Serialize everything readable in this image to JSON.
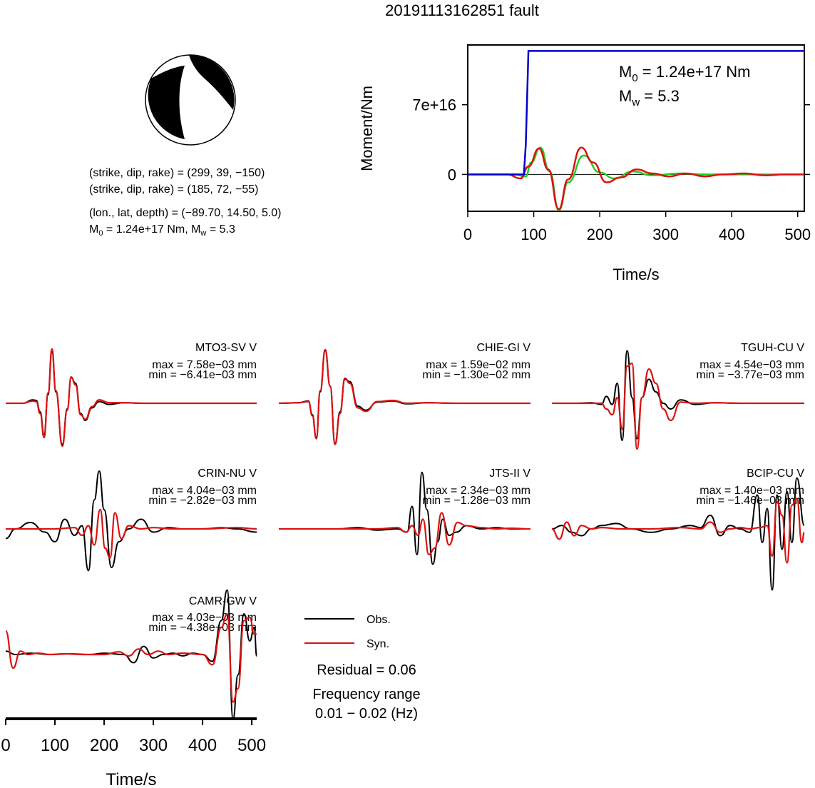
{
  "title": "20191113162851 fault",
  "focal": {
    "plane1": "(strike, dip, rake) = (299, 39, −150)",
    "plane2": "(strike, dip, rake) = (185, 72, −55)",
    "location": "(lon., lat, depth) = (−89.70, 14.50, 5.0)",
    "moment_prefix": "M",
    "moment_sub": "0",
    "moment_mid": " = 1.24e+17 Nm, M",
    "moment_sub2": "w",
    "moment_tail": " = 5.3"
  },
  "moment_panel": {
    "m0_prefix": "M",
    "m0_sub": "0",
    "m0_value": " = 1.24e+17 Nm",
    "mw_prefix": "M",
    "mw_sub": "w",
    "mw_value": " = 5.3"
  },
  "legend": {
    "obs": "Obs.",
    "syn": "Syn.",
    "residual": "Residual = 0.06",
    "freq_title": "Frequency range",
    "freq_value": "0.01 − 0.02 (Hz)"
  },
  "colors": {
    "obs": "#000000",
    "syn": "#dd1111",
    "cumulative_moment": "#0000cc",
    "moment_rate_a": "#dd1111",
    "moment_rate_b": "#22cc22"
  },
  "chart_data": [
    {
      "type": "line",
      "title": "",
      "xlabel": "Time/s",
      "ylabel": "Moment/Nm",
      "xlim": [
        0,
        510
      ],
      "ylim": [
        -37000000000000000,
        130000000000000000
      ],
      "xticks": [
        "0",
        "100",
        "200",
        "300",
        "400",
        "500"
      ],
      "yticks": [
        "0",
        "7e+16"
      ],
      "series": [
        {
          "color": "#0000cc",
          "x": [
            0,
            85,
            88,
            92,
            510
          ],
          "y": [
            0,
            0,
            30000000000000000,
            124000000000000000,
            124000000000000000
          ]
        },
        {
          "color": "#dd1111",
          "x": [
            0,
            60,
            80,
            92,
            108,
            122,
            138,
            152,
            172,
            190,
            210,
            232,
            256,
            280,
            305,
            330,
            360,
            385,
            420,
            450,
            480,
            510
          ],
          "y": [
            0,
            0,
            -4000000000000000,
            8000000000000000,
            26000000000000000,
            5000000000000000,
            -35000000000000000,
            -5000000000000000,
            27000000000000000,
            12000000000000000,
            -8000000000000000,
            -3000000000000000,
            5000000000000000,
            1000000000000000,
            -2000000000000000,
            1000000000000000,
            -2000000000000000,
            0,
            1000000000000000,
            -1000000000000000,
            0,
            0
          ]
        },
        {
          "color": "#22cc22",
          "x": [
            0,
            70,
            88,
            96,
            110,
            124,
            138,
            152,
            176,
            200,
            222,
            250,
            280,
            320,
            360,
            400,
            510
          ],
          "y": [
            0,
            0,
            -2000000000000000,
            12000000000000000,
            27000000000000000,
            3000000000000000,
            -36000000000000000,
            -8000000000000000,
            19000000000000000,
            2000000000000000,
            -4000000000000000,
            3000000000000000,
            -1000000000000000,
            1000000000000000,
            0,
            0,
            0
          ]
        }
      ]
    },
    {
      "type": "line",
      "title": "MTO3-SV V",
      "max_text": "max = 7.58e−03 mm",
      "min_text": "min = −6.41e−03 mm",
      "xlim": [
        0,
        510
      ],
      "ylim": [
        -1,
        1
      ],
      "series": [
        {
          "name": "Obs.",
          "x": [
            0,
            35,
            55,
            62,
            70,
            78,
            86,
            94,
            102,
            115,
            125,
            133,
            142,
            152,
            162,
            175,
            190,
            210,
            240,
            280,
            330,
            400,
            510
          ],
          "y": [
            0,
            0,
            0.06,
            0.05,
            -0.15,
            -0.55,
            0.15,
            0.9,
            0.2,
            -0.72,
            -0.1,
            0.45,
            0.35,
            -0.18,
            -0.3,
            -0.08,
            0.03,
            -0.02,
            0.01,
            0,
            0,
            0,
            0
          ]
        },
        {
          "name": "Syn.",
          "x": [
            0,
            35,
            55,
            62,
            70,
            78,
            86,
            94,
            102,
            115,
            125,
            133,
            142,
            152,
            162,
            175,
            190,
            210,
            240,
            280,
            330,
            400,
            510
          ],
          "y": [
            0,
            0,
            0.04,
            0.03,
            -0.18,
            -0.6,
            0.18,
            0.95,
            0.22,
            -0.75,
            -0.12,
            0.46,
            0.32,
            -0.2,
            -0.28,
            -0.06,
            0.06,
            0.01,
            0.01,
            0,
            0,
            0,
            0
          ]
        }
      ]
    },
    {
      "type": "line",
      "title": "CHIE-GI V",
      "max_text": "max = 1.59e−02 mm",
      "min_text": "min = −1.30e−02 mm",
      "xlim": [
        0,
        510
      ],
      "ylim": [
        -1,
        1
      ],
      "series": [
        {
          "name": "Obs.",
          "x": [
            0,
            40,
            60,
            68,
            76,
            84,
            94,
            104,
            114,
            124,
            134,
            144,
            160,
            176,
            200,
            230,
            260,
            300,
            360,
            430,
            510
          ],
          "y": [
            0,
            0.01,
            0.04,
            -0.2,
            -0.6,
            0.2,
            0.92,
            0.3,
            -0.7,
            -0.15,
            0.42,
            0.38,
            -0.05,
            -0.12,
            0.02,
            0.04,
            -0.01,
            0.01,
            0,
            0,
            0
          ]
        },
        {
          "name": "Syn.",
          "x": [
            0,
            40,
            60,
            68,
            76,
            84,
            94,
            104,
            114,
            124,
            134,
            144,
            160,
            176,
            200,
            230,
            260,
            300,
            360,
            430,
            510
          ],
          "y": [
            0,
            0.01,
            0.03,
            -0.22,
            -0.62,
            0.22,
            0.94,
            0.3,
            -0.72,
            -0.18,
            0.44,
            0.35,
            -0.08,
            -0.14,
            0.03,
            0.05,
            0,
            0.01,
            0,
            0,
            0
          ]
        }
      ]
    },
    {
      "type": "line",
      "title": "TGUH-CU V",
      "max_text": "max = 4.54e−03 mm",
      "min_text": "min = −3.77e−03 mm",
      "xlim": [
        0,
        510
      ],
      "ylim": [
        -1,
        1
      ],
      "series": [
        {
          "name": "Obs.",
          "x": [
            0,
            50,
            80,
            100,
            110,
            122,
            132,
            142,
            152,
            162,
            172,
            182,
            196,
            210,
            225,
            240,
            260,
            290,
            330,
            380,
            430,
            510
          ],
          "y": [
            0,
            0,
            0.01,
            -0.02,
            0.12,
            -0.02,
            0.35,
            -0.65,
            0.92,
            0.1,
            -0.62,
            0.1,
            0.42,
            0.2,
            0.0,
            -0.1,
            0.06,
            -0.02,
            0.01,
            0,
            0,
            0
          ]
        },
        {
          "name": "Syn.",
          "x": [
            0,
            50,
            80,
            100,
            110,
            122,
            132,
            142,
            152,
            162,
            172,
            182,
            196,
            210,
            225,
            240,
            260,
            290,
            330,
            380,
            430,
            510
          ],
          "y": [
            0,
            0,
            0,
            0,
            -0.1,
            -0.2,
            0.1,
            -0.45,
            0.65,
            0.7,
            -0.8,
            0.1,
            0.6,
            0.35,
            -0.1,
            -0.3,
            0.02,
            0.0,
            0.01,
            0,
            0,
            0
          ]
        }
      ]
    },
    {
      "type": "line",
      "title": "CRIN-NU V",
      "max_text": "max = 4.04e−03 mm",
      "min_text": "min = −2.82e−03 mm",
      "xlim": [
        0,
        510
      ],
      "ylim": [
        -1,
        1
      ],
      "series": [
        {
          "name": "Obs.",
          "x": [
            0,
            20,
            50,
            80,
            100,
            120,
            140,
            155,
            168,
            180,
            190,
            200,
            215,
            230,
            250,
            275,
            300,
            330,
            360,
            400,
            440,
            470,
            510
          ],
          "y": [
            -0.15,
            0.0,
            0.1,
            -0.05,
            -0.2,
            0.15,
            -0.1,
            0.05,
            -0.65,
            0.45,
            0.9,
            0.3,
            -0.6,
            -0.2,
            0.0,
            0.15,
            -0.05,
            0.02,
            0.0,
            0.0,
            0.02,
            0.0,
            -0.05
          ]
        },
        {
          "name": "Syn.",
          "x": [
            0,
            60,
            100,
            140,
            155,
            168,
            180,
            192,
            202,
            212,
            222,
            235,
            250,
            275,
            300,
            340,
            400,
            470,
            510
          ],
          "y": [
            0,
            0,
            0,
            0.02,
            -0.1,
            0.05,
            -0.25,
            0.3,
            -0.3,
            -0.45,
            0.25,
            -0.15,
            0.05,
            0.0,
            0.02,
            0,
            0,
            0.02,
            0
          ]
        }
      ]
    },
    {
      "type": "line",
      "title": "JTS-II V",
      "max_text": "max = 2.34e−03 mm",
      "min_text": "min = −1.28e−03 mm",
      "xlim": [
        0,
        510
      ],
      "ylim": [
        -1,
        1
      ],
      "series": [
        {
          "name": "Obs.",
          "x": [
            0,
            60,
            120,
            160,
            200,
            240,
            260,
            270,
            280,
            290,
            300,
            312,
            322,
            332,
            345,
            360,
            380,
            410,
            440,
            470,
            510
          ],
          "y": [
            0,
            0,
            0.0,
            0.02,
            -0.02,
            0.0,
            -0.05,
            0.35,
            -0.4,
            0.88,
            0.3,
            -0.55,
            -0.2,
            0.15,
            -0.1,
            -0.05,
            0.05,
            0.0,
            0.02,
            0.0,
            0.0
          ]
        },
        {
          "name": "Syn.",
          "x": [
            0,
            100,
            200,
            240,
            258,
            270,
            282,
            292,
            304,
            316,
            330,
            345,
            362,
            380,
            410,
            440,
            470,
            510
          ],
          "y": [
            0,
            0,
            0,
            0.02,
            -0.05,
            0.05,
            -0.1,
            0.15,
            -0.4,
            -0.3,
            0.25,
            -0.25,
            0.1,
            0.05,
            0.02,
            0.0,
            0.01,
            0
          ]
        }
      ]
    },
    {
      "type": "line",
      "title": "BCIP-CU V",
      "max_text": "max = 1.40e−03 mm",
      "min_text": "min = −1.46e−03 mm",
      "xlim": [
        0,
        510
      ],
      "ylim": [
        -1,
        1
      ],
      "series": [
        {
          "name": "Obs.",
          "x": [
            0,
            20,
            40,
            60,
            80,
            100,
            130,
            160,
            200,
            240,
            280,
            300,
            320,
            340,
            360,
            380,
            400,
            415,
            425,
            435,
            445,
            455,
            465,
            475,
            485,
            495,
            510
          ],
          "y": [
            0,
            0.05,
            -0.05,
            -0.1,
            0.0,
            0.05,
            0.08,
            0.0,
            -0.05,
            0.0,
            0.05,
            0.02,
            0.2,
            -0.1,
            0.05,
            0.0,
            -0.05,
            0.5,
            -0.2,
            0.3,
            -0.9,
            0.5,
            -0.3,
            0.55,
            -0.2,
            0.75,
            0.05
          ]
        },
        {
          "name": "Syn.",
          "x": [
            0,
            15,
            30,
            45,
            60,
            80,
            100,
            140,
            200,
            260,
            300,
            320,
            340,
            360,
            380,
            400,
            420,
            435,
            445,
            455,
            465,
            475,
            485,
            495,
            505,
            510
          ],
          "y": [
            0,
            -0.15,
            0.1,
            -0.1,
            0.05,
            0.0,
            0.02,
            0.0,
            0.0,
            0.02,
            0.0,
            0.1,
            -0.05,
            0.0,
            0.02,
            0.0,
            0.02,
            0.05,
            -0.4,
            0.4,
            0.2,
            -0.5,
            0.35,
            0.45,
            -0.2,
            -0.05
          ]
        }
      ]
    },
    {
      "type": "line",
      "title": "CAMR-GW V",
      "max_text": "max = 4.03e−03 mm",
      "min_text": "min = −4.38e−03 mm",
      "xlim": [
        0,
        510
      ],
      "ylim": [
        -1,
        1
      ],
      "series": [
        {
          "name": "Obs.",
          "x": [
            0,
            20,
            50,
            90,
            130,
            170,
            200,
            240,
            260,
            280,
            300,
            320,
            340,
            360,
            380,
            400,
            420,
            438,
            450,
            462,
            472,
            484,
            496,
            505,
            510
          ],
          "y": [
            0.05,
            0.0,
            0.02,
            0.0,
            0.01,
            0.0,
            0.02,
            0.0,
            -0.12,
            0.12,
            -0.05,
            0.0,
            0.02,
            -0.02,
            0.02,
            0.0,
            -0.1,
            0.5,
            0.95,
            -0.95,
            -0.3,
            0.6,
            0.2,
            0.4,
            -0.02
          ]
        },
        {
          "name": "Syn.",
          "x": [
            0,
            15,
            30,
            45,
            65,
            90,
            120,
            160,
            200,
            230,
            250,
            270,
            290,
            310,
            330,
            360,
            400,
            420,
            438,
            450,
            462,
            472,
            484,
            496,
            505,
            510
          ],
          "y": [
            0.35,
            -0.2,
            0.05,
            0.0,
            0.02,
            0.0,
            0.01,
            0.0,
            0.0,
            0.04,
            -0.02,
            0.08,
            0.0,
            0.05,
            0.0,
            0.02,
            0.0,
            -0.15,
            0.4,
            0.6,
            -0.7,
            -0.5,
            0.5,
            0.55,
            0.3,
            0.3
          ]
        }
      ]
    }
  ],
  "waveform_axis": {
    "xlabel": "Time/s",
    "xticks": [
      "0",
      "100",
      "200",
      "300",
      "400",
      "500"
    ]
  }
}
